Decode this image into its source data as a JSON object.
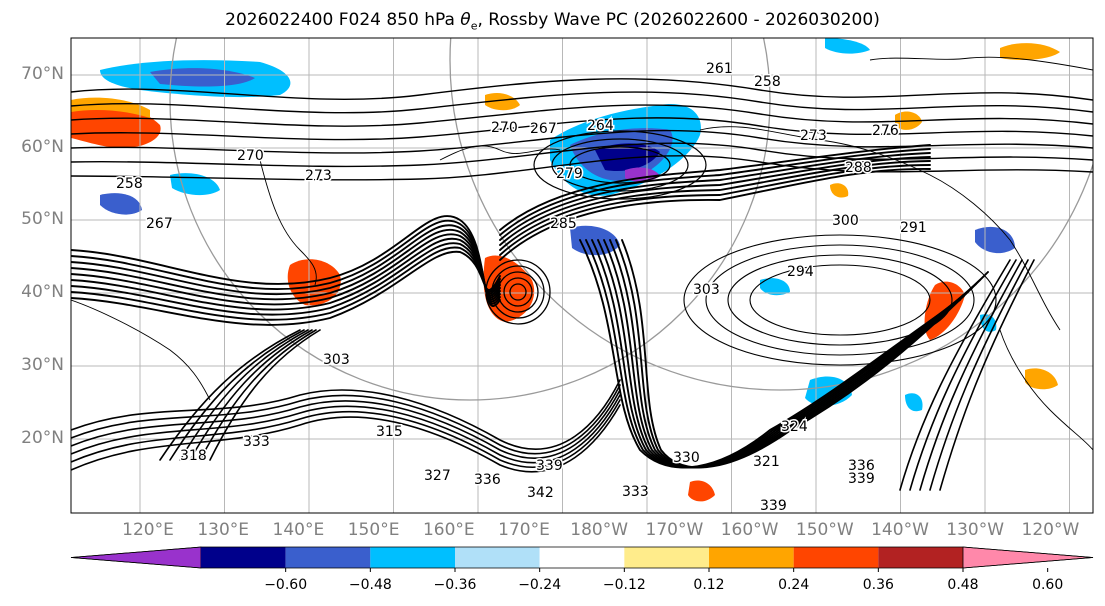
{
  "title": {
    "prefix": "2026022400 F024 850 hPa ",
    "symbol": "θ",
    "symbol_sub": "e",
    "suffix": ", Rossby Wave PC (2026022600 - 2026030200)"
  },
  "lat_labels": [
    "70°N",
    "60°N",
    "50°N",
    "40°N",
    "30°N",
    "20°N"
  ],
  "lon_labels": [
    "120°E",
    "130°E",
    "140°E",
    "150°E",
    "160°E",
    "170°E",
    "180°W",
    "170°W",
    "160°W",
    "150°W",
    "140°W",
    "130°W",
    "120°W"
  ],
  "contour_labels": [
    "261",
    "258",
    "270",
    "267",
    "264",
    "279",
    "273",
    "276",
    "270",
    "273",
    "258",
    "267",
    "288",
    "300",
    "285",
    "291",
    "303",
    "294",
    "303",
    "333",
    "315",
    "318",
    "327",
    "336",
    "339",
    "342",
    "330",
    "333",
    "339",
    "336",
    "339",
    "324",
    "321"
  ],
  "colorbar": {
    "ticks": [
      "−0.60",
      "−0.48",
      "−0.36",
      "−0.24",
      "−0.12",
      "0.12",
      "0.24",
      "0.36",
      "0.48",
      "0.60"
    ],
    "colors": [
      "#9932cc",
      "#00008b",
      "#3a5fcd",
      "#00bfff",
      "#b0e0f8",
      "#ffffff",
      "#ffec8b",
      "#ffa500",
      "#ff4500",
      "#b22222",
      "#ff88aa"
    ]
  }
}
